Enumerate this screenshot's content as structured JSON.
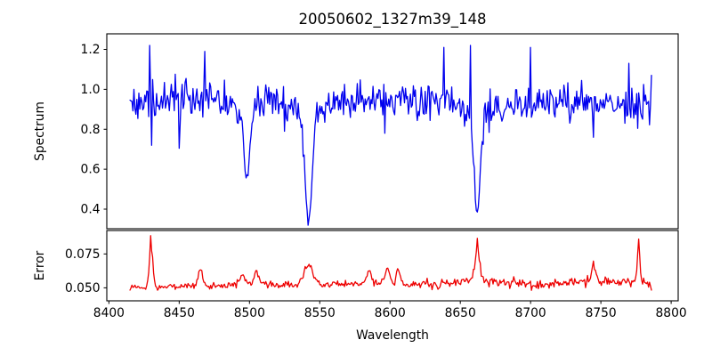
{
  "figure": {
    "background": "#ffffff",
    "text_color": "#000000"
  },
  "chart_data": [
    {
      "type": "line",
      "panel": "spectrum",
      "title": "20050602_1327m39_148",
      "ylabel": "Spectrum",
      "xlabel": "",
      "legend": "none",
      "grid": false,
      "line_color": "#0000ee",
      "xlim": [
        8398.5,
        8805
      ],
      "ylim": [
        0.302,
        1.278
      ],
      "ytick_values": [
        0.4,
        0.6,
        0.8,
        1.0,
        1.2
      ],
      "ytick_labels": [
        "0.4",
        "0.6",
        "0.8",
        "1.0",
        "1.2"
      ],
      "xtick_values": [],
      "xtick_labels": [],
      "x_start": 8415,
      "x_end": 8786,
      "x_step": 0.7,
      "seed": 20050602,
      "continuum_keypoints": [
        [
          8416,
          0.93
        ],
        [
          8440,
          0.95
        ],
        [
          8470,
          0.95
        ],
        [
          8520,
          0.955
        ],
        [
          8560,
          0.95
        ],
        [
          8600,
          0.955
        ],
        [
          8630,
          0.95
        ],
        [
          8680,
          0.93
        ],
        [
          8720,
          0.94
        ],
        [
          8760,
          0.92
        ],
        [
          8786,
          0.9
        ]
      ],
      "noise_sigma_keypoints": [
        [
          8416,
          0.046
        ],
        [
          8470,
          0.042
        ],
        [
          8520,
          0.04
        ],
        [
          8560,
          0.038
        ],
        [
          8620,
          0.042
        ],
        [
          8660,
          0.045
        ],
        [
          8700,
          0.048
        ],
        [
          8786,
          0.048
        ]
      ],
      "absorption_lines": [
        {
          "name": "CaII-8498",
          "center": 8498,
          "core_depth": 0.34,
          "core_sigma": 2.0,
          "wing_depth": 0.1,
          "wing_scale": 6,
          "min_flux": 0.53
        },
        {
          "name": "CaII-8542",
          "center": 8542,
          "core_depth": 0.52,
          "core_sigma": 2.5,
          "wing_depth": 0.13,
          "wing_scale": 9,
          "min_flux": 0.33
        },
        {
          "name": "CaII-8662",
          "center": 8662,
          "core_depth": 0.47,
          "core_sigma": 2.2,
          "wing_depth": 0.12,
          "wing_scale": 7,
          "min_flux": 0.39
        }
      ],
      "forced_points": [
        {
          "x": 8429.3,
          "value": 1.22
        },
        {
          "x": 8430.7,
          "value": 0.72
        },
        {
          "x": 8450,
          "value": 0.705
        },
        {
          "x": 8468,
          "value": 1.19
        },
        {
          "x": 8525,
          "value": 0.79
        },
        {
          "x": 8596,
          "value": 0.78
        },
        {
          "x": 8638,
          "value": 1.21
        },
        {
          "x": 8657,
          "value": 1.22
        },
        {
          "x": 8700,
          "value": 1.21
        },
        {
          "x": 8745,
          "value": 0.76
        },
        {
          "x": 8770,
          "value": 1.13
        },
        {
          "x": 8786,
          "value": 1.07
        }
      ]
    },
    {
      "type": "line",
      "panel": "error",
      "title": "",
      "ylabel": "Error",
      "xlabel": "Wavelength",
      "legend": "none",
      "grid": false,
      "line_color": "#ee0000",
      "xlim": [
        8398.5,
        8805
      ],
      "ylim": [
        0.0404,
        0.0923
      ],
      "ytick_values": [
        0.05,
        0.075
      ],
      "ytick_labels": [
        "0.050",
        "0.075"
      ],
      "xtick_values": [
        8400,
        8450,
        8500,
        8550,
        8600,
        8650,
        8700,
        8750,
        8800
      ],
      "xtick_labels": [
        "8400",
        "8450",
        "8500",
        "8550",
        "8600",
        "8650",
        "8700",
        "8750",
        "8800"
      ],
      "x_start": 8415,
      "x_end": 8786,
      "x_step": 0.7,
      "seed": 1327,
      "continuum_keypoints": [
        [
          8414,
          0.0505
        ],
        [
          8440,
          0.0512
        ],
        [
          8470,
          0.0512
        ],
        [
          8500,
          0.0522
        ],
        [
          8530,
          0.052
        ],
        [
          8560,
          0.0525
        ],
        [
          8580,
          0.053
        ],
        [
          8600,
          0.054
        ],
        [
          8620,
          0.0525
        ],
        [
          8640,
          0.053
        ],
        [
          8655,
          0.055
        ],
        [
          8670,
          0.0545
        ],
        [
          8690,
          0.0528
        ],
        [
          8710,
          0.053
        ],
        [
          8730,
          0.0538
        ],
        [
          8745,
          0.0548
        ],
        [
          8760,
          0.0542
        ],
        [
          8775,
          0.0552
        ],
        [
          8786,
          0.0515
        ]
      ],
      "noise_sigma_keypoints": [
        [
          8414,
          0.0012
        ],
        [
          8560,
          0.0011
        ],
        [
          8600,
          0.0014
        ],
        [
          8630,
          0.0017
        ],
        [
          8786,
          0.0018
        ]
      ],
      "peaks": [
        {
          "center": 8430,
          "height": 0.03,
          "sigma": 1.2
        },
        {
          "center": 8465,
          "height": 0.013,
          "sigma": 1.5
        },
        {
          "center": 8495,
          "height": 0.007,
          "sigma": 2.0
        },
        {
          "center": 8505,
          "height": 0.011,
          "sigma": 1.5
        },
        {
          "center": 8542,
          "height": 0.015,
          "sigma": 3.0
        },
        {
          "center": 8585,
          "height": 0.009,
          "sigma": 1.5
        },
        {
          "center": 8598,
          "height": 0.012,
          "sigma": 1.3
        },
        {
          "center": 8606,
          "height": 0.01,
          "sigma": 1.2
        },
        {
          "center": 8662,
          "height": 0.026,
          "sigma": 1.6
        },
        {
          "center": 8745,
          "height": 0.011,
          "sigma": 1.5
        },
        {
          "center": 8777,
          "height": 0.028,
          "sigma": 0.9
        }
      ],
      "forced_points": [
        {
          "x": 8430,
          "value": 0.0885
        },
        {
          "x": 8662,
          "value": 0.0865
        },
        {
          "x": 8777,
          "value": 0.086
        }
      ]
    }
  ]
}
